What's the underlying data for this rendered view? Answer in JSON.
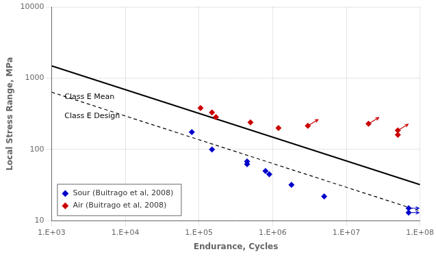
{
  "chart_data": {
    "type": "scatter",
    "xlabel": "Endurance, Cycles",
    "ylabel": "Local Stress Range, MPa",
    "log": true,
    "grid": true,
    "legend": "lower left",
    "xlim": [
      1000,
      100000000
    ],
    "ylim": [
      10,
      10000
    ],
    "xticks": [
      {
        "value": 1000,
        "label": "1.E+03"
      },
      {
        "value": 10000,
        "label": "1.E+04"
      },
      {
        "value": 100000,
        "label": "1.E+05"
      },
      {
        "value": 1000000,
        "label": "1.E+06"
      },
      {
        "value": 10000000,
        "label": "1.E+07"
      },
      {
        "value": 100000000,
        "label": "1.E+08"
      }
    ],
    "yticks": [
      10,
      100,
      1000,
      10000
    ],
    "series": [
      {
        "name": "Sour (Buitrago et al, 2008)",
        "color": "#0000CC",
        "marker": "diamond",
        "x": [
          80000,
          150000,
          450000,
          450000,
          800000,
          900000,
          1800000,
          5000000,
          70000000,
          70000000
        ],
        "values": [
          175,
          100,
          68,
          62,
          50,
          45,
          32,
          22,
          15,
          13
        ],
        "runouts": {
          "x": [
            70000000,
            70000000
          ],
          "values": [
            15,
            13
          ]
        }
      },
      {
        "name": "Air (Buitrago et al, 2008)",
        "color": "#CC0000",
        "marker": "diamond",
        "x": [
          105000,
          150000,
          170000,
          500000,
          1200000,
          3000000,
          20000000,
          50000000,
          50000000
        ],
        "values": [
          380,
          330,
          285,
          240,
          200,
          215,
          230,
          160,
          185
        ],
        "runouts": {
          "x": [
            3000000,
            20000000,
            50000000
          ],
          "values": [
            215,
            230,
            185
          ]
        }
      },
      {
        "type": "line",
        "color": "#000000",
        "line_style": "solid",
        "x": [
          1000,
          100000000
        ],
        "values": [
          1486.44,
          32.037
        ]
      },
      {
        "type": "line",
        "color": "#000000",
        "line_style": "dashed",
        "x": [
          1000,
          100000000
        ],
        "values": [
          635.51,
          13.697
        ]
      }
    ],
    "annotations": [
      {
        "text": "Class E Mean",
        "x": 1500,
        "y": 540
      },
      {
        "text": "Class E Design",
        "x": 1500,
        "y": 290
      }
    ]
  }
}
